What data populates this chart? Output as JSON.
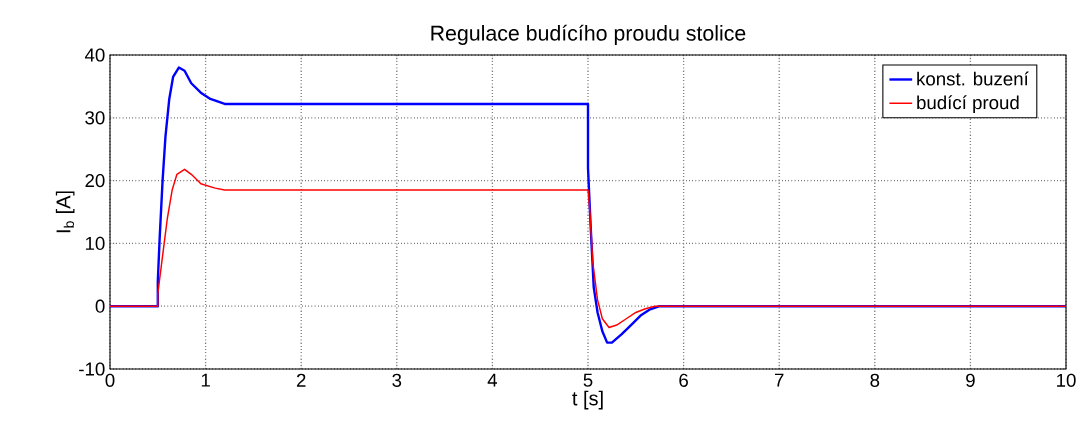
{
  "chart_data": {
    "type": "line",
    "title": "Regulace budícího proudu stolice",
    "xlabel": "t [s]",
    "ylabel": "I$_{b}$ [A]",
    "xlim": [
      0,
      10
    ],
    "ylim": [
      -10,
      40
    ],
    "xticks": [
      0,
      1,
      2,
      3,
      4,
      5,
      6,
      7,
      8,
      9,
      10
    ],
    "yticks": [
      -10,
      0,
      10,
      20,
      30,
      40
    ],
    "grid": true,
    "legend": "top right",
    "marker": "none",
    "line_style": "solid",
    "series": [
      {
        "name": "konst. buzení",
        "color": "#0000ff",
        "x": [
          0,
          0.5,
          0.5,
          0.52,
          0.55,
          0.58,
          0.62,
          0.66,
          0.72,
          0.78,
          0.85,
          0.95,
          1.05,
          1.2,
          5,
          5,
          5.03,
          5.06,
          5.1,
          5.15,
          5.2,
          5.25,
          5.35,
          5.45,
          5.55,
          5.65,
          5.75,
          10
        ],
        "values": [
          0,
          0,
          4,
          11,
          20,
          27,
          33,
          36.5,
          38,
          37.5,
          35.5,
          34,
          33,
          32.2,
          32.2,
          22,
          12,
          3,
          -1,
          -4,
          -5.8,
          -5.8,
          -4.5,
          -3,
          -1.5,
          -0.5,
          0,
          0
        ]
      },
      {
        "name": "budící proud",
        "color": "#ff0000",
        "x": [
          0,
          0.5,
          0.5,
          0.55,
          0.6,
          0.65,
          0.7,
          0.78,
          0.85,
          0.95,
          1.1,
          1.2,
          5,
          5.02,
          5.05,
          5.1,
          5.15,
          5.22,
          5.3,
          5.4,
          5.5,
          5.6,
          5.7,
          10
        ],
        "values": [
          0,
          0,
          2,
          8,
          14,
          18.5,
          21,
          21.8,
          21,
          19.5,
          18.8,
          18.5,
          18.5,
          15,
          7,
          1,
          -2,
          -3.4,
          -3,
          -2,
          -1,
          -0.4,
          0,
          0
        ]
      }
    ]
  }
}
